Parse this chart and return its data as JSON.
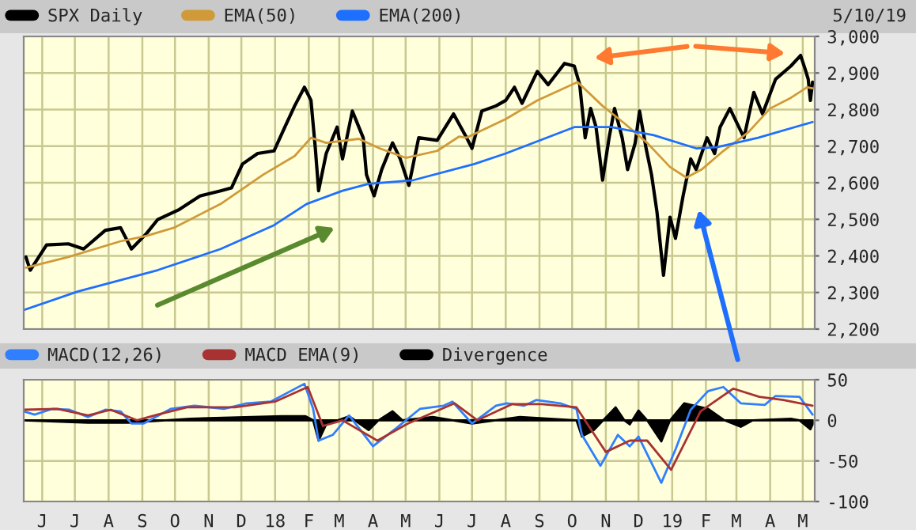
{
  "chart_data": [
    {
      "type": "line",
      "annotations": [
        "5/10/19"
      ],
      "legend": "top left",
      "grid": true,
      "tick_labels": "y",
      "xlim": [
        "2017-05-15",
        "2019-05-12"
      ],
      "xticks": [
        {
          "value": "2017-06-01",
          "label": null
        },
        {
          "value": "2017-07-01",
          "label": null
        },
        {
          "value": "2017-08-01",
          "label": null
        },
        {
          "value": "2017-09-01",
          "label": null
        },
        {
          "value": "2017-10-01",
          "label": null
        },
        {
          "value": "2017-11-01",
          "label": null
        },
        {
          "value": "2017-12-01",
          "label": null
        },
        {
          "value": "2018-01-01",
          "label": null
        },
        {
          "value": "2018-02-01",
          "label": null
        },
        {
          "value": "2018-03-01",
          "label": null
        },
        {
          "value": "2018-04-01",
          "label": null
        },
        {
          "value": "2018-05-01",
          "label": null
        },
        {
          "value": "2018-06-01",
          "label": null
        },
        {
          "value": "2018-07-01",
          "label": null
        },
        {
          "value": "2018-08-01",
          "label": null
        },
        {
          "value": "2018-09-01",
          "label": null
        },
        {
          "value": "2018-10-01",
          "label": null
        },
        {
          "value": "2018-11-01",
          "label": null
        },
        {
          "value": "2018-12-01",
          "label": null
        },
        {
          "value": "2019-01-01",
          "label": null
        },
        {
          "value": "2019-02-01",
          "label": null
        },
        {
          "value": "2019-03-01",
          "label": null
        },
        {
          "value": "2019-04-01",
          "label": null
        },
        {
          "value": "2019-05-01",
          "label": null
        }
      ],
      "ylim": [
        2200,
        3000
      ],
      "yticks": [
        {
          "value": 2200,
          "label": "2,200"
        },
        {
          "value": 2300,
          "label": "2,300"
        },
        {
          "value": 2400,
          "label": "2,400"
        },
        {
          "value": 2500,
          "label": "2,500"
        },
        {
          "value": 2600,
          "label": "2,600"
        },
        {
          "value": 2700,
          "label": "2,700"
        },
        {
          "value": 2800,
          "label": "2,800"
        },
        {
          "value": 2900,
          "label": "2,900"
        },
        {
          "value": 3000,
          "label": "3,000"
        }
      ],
      "series": [
        {
          "name": "SPX Daily",
          "color": "#000000",
          "x": [
            "2017-05-17",
            "2017-05-21",
            "2017-06-05",
            "2017-06-25",
            "2017-07-09",
            "2017-07-29",
            "2017-08-12",
            "2017-08-22",
            "2017-09-05",
            "2017-09-15",
            "2017-10-05",
            "2017-10-24",
            "2017-11-12",
            "2017-11-22",
            "2017-12-02",
            "2017-12-16",
            "2017-12-31",
            "2018-01-10",
            "2018-01-19",
            "2018-01-28",
            "2018-02-03",
            "2018-02-07",
            "2018-02-10",
            "2018-02-17",
            "2018-02-27",
            "2018-03-04",
            "2018-03-13",
            "2018-03-23",
            "2018-03-26",
            "2018-04-02",
            "2018-04-09",
            "2018-04-19",
            "2018-04-26",
            "2018-05-04",
            "2018-05-13",
            "2018-05-30",
            "2018-06-14",
            "2018-06-26",
            "2018-07-01",
            "2018-07-10",
            "2018-07-23",
            "2018-08-01",
            "2018-08-09",
            "2018-08-16",
            "2018-08-30",
            "2018-09-09",
            "2018-09-24",
            "2018-10-03",
            "2018-10-08",
            "2018-10-13",
            "2018-10-18",
            "2018-10-23",
            "2018-10-29",
            "2018-11-04",
            "2018-11-09",
            "2018-11-16",
            "2018-11-21",
            "2018-11-28",
            "2018-12-02",
            "2018-12-08",
            "2018-12-13",
            "2018-12-18",
            "2018-12-24",
            "2018-12-30",
            "2019-01-04",
            "2019-01-11",
            "2019-01-18",
            "2019-01-23",
            "2019-02-02",
            "2019-02-09",
            "2019-02-14",
            "2019-02-23",
            "2019-03-08",
            "2019-03-17",
            "2019-03-25",
            "2019-04-06",
            "2019-04-20",
            "2019-04-29",
            "2019-05-03",
            "2019-05-06",
            "2019-05-08",
            "2019-05-10"
          ],
          "values": [
            2397,
            2361,
            2430,
            2433,
            2419,
            2470,
            2477,
            2419,
            2462,
            2499,
            2527,
            2564,
            2578,
            2586,
            2651,
            2680,
            2687,
            2752,
            2810,
            2861,
            2825,
            2694,
            2578,
            2680,
            2752,
            2665,
            2796,
            2723,
            2622,
            2564,
            2636,
            2709,
            2665,
            2593,
            2723,
            2716,
            2788,
            2723,
            2694,
            2796,
            2810,
            2825,
            2861,
            2817,
            2904,
            2868,
            2926,
            2919,
            2868,
            2723,
            2803,
            2752,
            2607,
            2723,
            2803,
            2723,
            2636,
            2709,
            2796,
            2694,
            2622,
            2520,
            2347,
            2506,
            2448,
            2564,
            2665,
            2636,
            2723,
            2680,
            2752,
            2803,
            2723,
            2847,
            2788,
            2883,
            2919,
            2948,
            2912,
            2883,
            2825,
            2875
          ]
        },
        {
          "name": "EMA(50)",
          "color": "#d09a38",
          "x": [
            "2017-05-17",
            "2017-06-25",
            "2017-08-12",
            "2017-09-05",
            "2017-09-30",
            "2017-11-12",
            "2017-12-21",
            "2018-01-19",
            "2018-02-03",
            "2018-02-17",
            "2018-03-19",
            "2018-04-07",
            "2018-05-01",
            "2018-05-30",
            "2018-06-19",
            "2018-06-26",
            "2018-08-01",
            "2018-08-30",
            "2018-10-06",
            "2018-10-29",
            "2018-11-19",
            "2018-12-09",
            "2018-12-30",
            "2019-01-14",
            "2019-01-28",
            "2019-02-17",
            "2019-03-12",
            "2019-04-01",
            "2019-04-20",
            "2019-05-05",
            "2019-05-10"
          ],
          "values": [
            2368,
            2397,
            2440,
            2455,
            2477,
            2542,
            2622,
            2673,
            2723,
            2709,
            2720,
            2694,
            2668,
            2687,
            2726,
            2723,
            2774,
            2825,
            2875,
            2810,
            2760,
            2709,
            2643,
            2614,
            2636,
            2687,
            2738,
            2803,
            2832,
            2861,
            2858
          ]
        },
        {
          "name": "EMA(200)",
          "color": "#1f6fff",
          "x": [
            "2017-05-15",
            "2017-07-04",
            "2017-09-15",
            "2017-11-12",
            "2017-12-31",
            "2018-01-30",
            "2018-03-04",
            "2018-03-28",
            "2018-05-08",
            "2018-07-03",
            "2018-08-01",
            "2018-10-03",
            "2018-11-06",
            "2018-12-15",
            "2019-01-23",
            "2019-02-11",
            "2019-03-21",
            "2019-05-10"
          ],
          "values": [
            2252,
            2303,
            2361,
            2419,
            2484,
            2542,
            2578,
            2597,
            2607,
            2651,
            2680,
            2752,
            2752,
            2730,
            2694,
            2697,
            2723,
            2766
          ]
        }
      ]
    },
    {
      "type": "line",
      "legend": "top left",
      "grid": true,
      "xlim": [
        "2017-05-15",
        "2019-05-12"
      ],
      "xticks": [
        {
          "value": "2017-06-01",
          "label": "J"
        },
        {
          "value": "2017-07-01",
          "label": "J"
        },
        {
          "value": "2017-08-01",
          "label": "A"
        },
        {
          "value": "2017-09-01",
          "label": "S"
        },
        {
          "value": "2017-10-01",
          "label": "O"
        },
        {
          "value": "2017-11-01",
          "label": "N"
        },
        {
          "value": "2017-12-01",
          "label": "D"
        },
        {
          "value": "2018-01-01",
          "label": "18"
        },
        {
          "value": "2018-02-01",
          "label": "F"
        },
        {
          "value": "2018-03-01",
          "label": "M"
        },
        {
          "value": "2018-04-01",
          "label": "A"
        },
        {
          "value": "2018-05-01",
          "label": "M"
        },
        {
          "value": "2018-06-01",
          "label": "J"
        },
        {
          "value": "2018-07-01",
          "label": "J"
        },
        {
          "value": "2018-08-01",
          "label": "A"
        },
        {
          "value": "2018-09-01",
          "label": "S"
        },
        {
          "value": "2018-10-01",
          "label": "O"
        },
        {
          "value": "2018-11-01",
          "label": "N"
        },
        {
          "value": "2018-12-01",
          "label": "D"
        },
        {
          "value": "2019-01-01",
          "label": "19"
        },
        {
          "value": "2019-02-01",
          "label": "F"
        },
        {
          "value": "2019-03-01",
          "label": "M"
        },
        {
          "value": "2019-04-01",
          "label": "A"
        },
        {
          "value": "2019-05-01",
          "label": "M"
        }
      ],
      "ylim": [
        -100,
        50
      ],
      "yticks": [
        -100,
        -50,
        0,
        50
      ],
      "series": [
        {
          "name": "MACD(12,26)",
          "color": "#2f7fff",
          "x": [
            "2017-05-15",
            "2017-05-25",
            "2017-06-10",
            "2017-06-26",
            "2017-07-13",
            "2017-07-29",
            "2017-08-12",
            "2017-08-22",
            "2017-09-02",
            "2017-09-27",
            "2017-10-19",
            "2017-11-15",
            "2017-12-06",
            "2017-12-28",
            "2018-01-28",
            "2018-02-05",
            "2018-02-10",
            "2018-02-23",
            "2018-03-10",
            "2018-04-01",
            "2018-04-23",
            "2018-05-14",
            "2018-06-05",
            "2018-06-13",
            "2018-07-01",
            "2018-07-23",
            "2018-08-02",
            "2018-08-18",
            "2018-08-29",
            "2018-09-20",
            "2018-10-05",
            "2018-10-10",
            "2018-10-27",
            "2018-11-12",
            "2018-11-23",
            "2018-12-01",
            "2018-12-22",
            "2019-01-04",
            "2019-01-18",
            "2019-02-03",
            "2019-02-17",
            "2019-03-05",
            "2019-03-27",
            "2019-04-06",
            "2019-04-28",
            "2019-05-10"
          ],
          "values": [
            11,
            7,
            14,
            13,
            4,
            13,
            11,
            -4,
            -4,
            14,
            18,
            14,
            21,
            23,
            45,
            14,
            -25,
            -18,
            6,
            -32,
            -9,
            14,
            18,
            23,
            -4,
            18,
            21,
            18,
            25,
            21,
            14,
            -18,
            -56,
            -18,
            -32,
            -20,
            -77,
            -36,
            13,
            36,
            41,
            21,
            19,
            30,
            29,
            7
          ]
        },
        {
          "name": "MACD EMA(9)",
          "color": "#a83232",
          "x": [
            "2017-05-15",
            "2017-06-15",
            "2017-07-13",
            "2017-08-03",
            "2017-08-27",
            "2017-09-15",
            "2017-10-12",
            "2017-11-25",
            "2018-01-01",
            "2018-01-31",
            "2018-02-14",
            "2018-03-04",
            "2018-04-05",
            "2018-05-03",
            "2018-06-15",
            "2018-07-06",
            "2018-08-07",
            "2018-09-03",
            "2018-10-05",
            "2018-11-01",
            "2018-11-23",
            "2018-12-09",
            "2018-12-31",
            "2019-01-27",
            "2019-02-26",
            "2019-03-22",
            "2019-04-13",
            "2019-05-10"
          ],
          "values": [
            13,
            14,
            6,
            13,
            0,
            7,
            16,
            16,
            23,
            41,
            -7,
            0,
            -25,
            -4,
            21,
            0,
            20,
            20,
            16,
            -39,
            -25,
            -25,
            -61,
            11,
            39,
            29,
            25,
            18
          ]
        },
        {
          "name": "Divergence",
          "color": "#000000",
          "type": "area",
          "x": [
            "2017-05-15",
            "2017-07-13",
            "2017-08-19",
            "2017-10-15",
            "2018-01-07",
            "2018-01-29",
            "2018-02-05",
            "2018-02-10",
            "2018-02-17",
            "2018-03-10",
            "2018-03-28",
            "2018-04-06",
            "2018-04-19",
            "2018-04-28",
            "2018-05-26",
            "2018-07-01",
            "2018-08-14",
            "2018-10-05",
            "2018-10-10",
            "2018-10-21",
            "2018-11-10",
            "2018-11-18",
            "2018-11-23",
            "2018-12-01",
            "2018-12-09",
            "2018-12-22",
            "2018-12-30",
            "2019-01-12",
            "2019-02-03",
            "2019-02-18",
            "2019-03-05",
            "2019-03-16",
            "2019-04-20",
            "2019-04-28",
            "2019-05-08",
            "2019-05-10"
          ],
          "values": [
            0,
            -3,
            -3,
            2,
            5,
            5,
            0,
            -25,
            -5,
            5,
            -12,
            0,
            11,
            0,
            4,
            -4,
            4,
            0,
            -20,
            -12,
            16,
            0,
            -5,
            12,
            0,
            -26,
            0,
            21,
            14,
            0,
            -8,
            0,
            2,
            0,
            -11,
            -5
          ]
        }
      ]
    }
  ]
}
